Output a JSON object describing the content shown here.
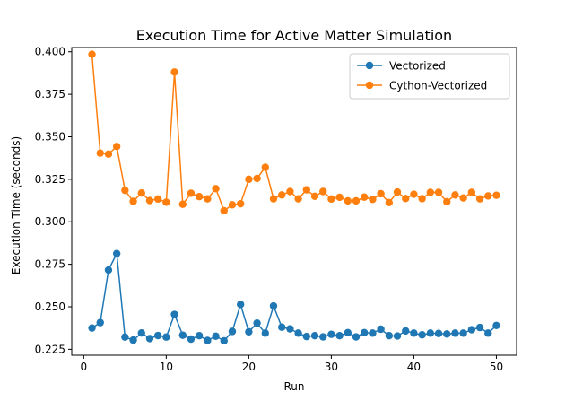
{
  "chart_data": {
    "type": "line",
    "title": "Execution Time for Active Matter Simulation",
    "xlabel": "Run",
    "ylabel": "Execution Time (seconds)",
    "xlim": [
      -1.45,
      52.45
    ],
    "ylim": [
      0.2215,
      0.4025
    ],
    "xticks": [
      0,
      10,
      20,
      30,
      40,
      50
    ],
    "yticks": [
      0.225,
      0.25,
      0.275,
      0.3,
      0.325,
      0.35,
      0.375,
      0.4
    ],
    "ytick_labels": [
      "0.225",
      "0.250",
      "0.275",
      "0.300",
      "0.325",
      "0.350",
      "0.375",
      "0.400"
    ],
    "grid": false,
    "legend_position": "top-right",
    "x": [
      1,
      2,
      3,
      4,
      5,
      6,
      7,
      8,
      9,
      10,
      11,
      12,
      13,
      14,
      15,
      16,
      17,
      18,
      19,
      20,
      21,
      22,
      23,
      24,
      25,
      26,
      27,
      28,
      29,
      30,
      31,
      32,
      33,
      34,
      35,
      36,
      37,
      38,
      39,
      40,
      41,
      42,
      43,
      44,
      45,
      46,
      47,
      48,
      49,
      50
    ],
    "series": [
      {
        "name": "Vectorized",
        "color": "#1f77b4",
        "values": [
          0.2375,
          0.2407,
          0.2716,
          0.2813,
          0.2322,
          0.2304,
          0.2346,
          0.2313,
          0.2331,
          0.2322,
          0.2455,
          0.2333,
          0.231,
          0.233,
          0.2302,
          0.2327,
          0.23,
          0.2355,
          0.2514,
          0.2353,
          0.2404,
          0.2345,
          0.2505,
          0.238,
          0.237,
          0.2345,
          0.2325,
          0.233,
          0.2323,
          0.2338,
          0.233,
          0.2348,
          0.2323,
          0.2348,
          0.2345,
          0.2368,
          0.233,
          0.2328,
          0.2358,
          0.2345,
          0.2335,
          0.2345,
          0.2343,
          0.234,
          0.2345,
          0.2345,
          0.2365,
          0.2378,
          0.2345,
          0.239
        ]
      },
      {
        "name": "Cython-Vectorized",
        "color": "#ff7f0e",
        "values": [
          0.3985,
          0.3404,
          0.3398,
          0.3443,
          0.3185,
          0.312,
          0.3169,
          0.3125,
          0.3134,
          0.3115,
          0.3881,
          0.3103,
          0.3168,
          0.3148,
          0.3135,
          0.3195,
          0.3065,
          0.31,
          0.3106,
          0.325,
          0.3255,
          0.3321,
          0.3135,
          0.3158,
          0.3178,
          0.3135,
          0.3188,
          0.315,
          0.3178,
          0.3134,
          0.3144,
          0.3123,
          0.3123,
          0.3145,
          0.3132,
          0.3165,
          0.3113,
          0.3175,
          0.3137,
          0.3162,
          0.3136,
          0.3173,
          0.3173,
          0.3118,
          0.3158,
          0.314,
          0.3173,
          0.3135,
          0.3152,
          0.3156
        ]
      }
    ]
  }
}
